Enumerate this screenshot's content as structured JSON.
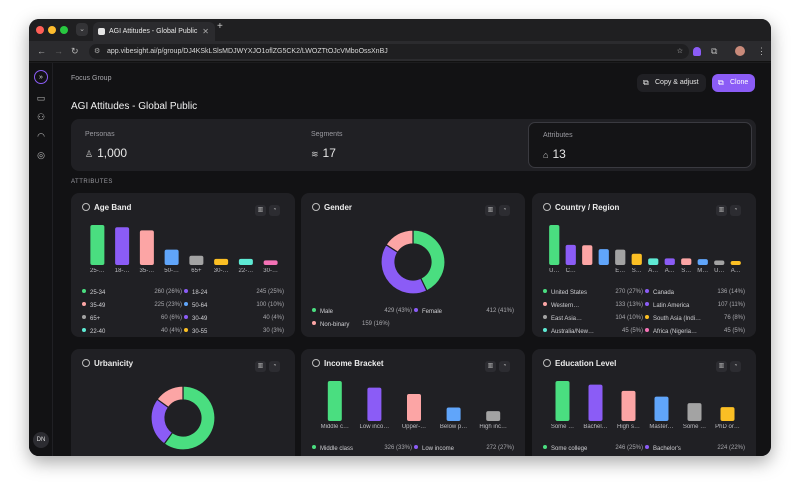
{
  "browser": {
    "tab_title": "AGI Attitudes - Global Public",
    "new_tab": "+",
    "url": "app.vibesight.ai/p/group/DJ4KSkLSlsMDJWYXJO1oflZG5CK2/LWOZTtOJcVMboOssXnBJ"
  },
  "rail": {
    "avatar": "DN"
  },
  "header": {
    "breadcrumb": "Focus Group",
    "title": "AGI Attitudes - Global Public",
    "copy_label": "Copy & adjust",
    "clone_label": "Clone"
  },
  "summary": {
    "personas_label": "Personas",
    "personas_value": "1,000",
    "segments_label": "Segments",
    "segments_value": "17",
    "attributes_label": "Attributes",
    "attributes_value": "13"
  },
  "section_label": "ATTRIBUTES",
  "colors": {
    "green": "#4ade80",
    "purple": "#8b5cf6",
    "pink": "#fca5a5",
    "blue": "#60a5fa",
    "gray": "#a3a3a3",
    "orange": "#fbbf24",
    "cyan": "#5eead4",
    "magenta": "#f472b6",
    "accent": "#8b5cf6"
  },
  "cards": [
    {
      "title": "Age Band",
      "type": "bar",
      "categories": [
        "25-…",
        "18-…",
        "35-…",
        "50-…",
        "65+",
        "30-…",
        "22-…",
        "30-…"
      ],
      "values": [
        260,
        245,
        225,
        100,
        60,
        40,
        40,
        30
      ],
      "colors": [
        "green",
        "purple",
        "pink",
        "blue",
        "gray",
        "orange",
        "cyan",
        "magenta"
      ],
      "legend": [
        {
          "label": "25-34",
          "count": "260 (26%)",
          "color": "green"
        },
        {
          "label": "18-24",
          "count": "245 (25%)",
          "color": "purple"
        },
        {
          "label": "35-49",
          "count": "225 (23%)",
          "color": "pink"
        },
        {
          "label": "50-64",
          "count": "100 (10%)",
          "color": "blue"
        },
        {
          "label": "65+",
          "count": "60 (6%)",
          "color": "gray"
        },
        {
          "label": "30-49",
          "count": "40 (4%)",
          "color": "purple"
        },
        {
          "label": "22-40",
          "count": "40 (4%)",
          "color": "cyan"
        },
        {
          "label": "30-55",
          "count": "30 (3%)",
          "color": "orange"
        }
      ]
    },
    {
      "title": "Gender",
      "type": "donut",
      "values": [
        429,
        412,
        159
      ],
      "colors": [
        "green",
        "purple",
        "pink"
      ],
      "legend": [
        {
          "label": "Male",
          "count": "429 (43%)",
          "color": "green"
        },
        {
          "label": "Female",
          "count": "412 (41%)",
          "color": "purple"
        },
        {
          "label": "Non-binary",
          "count": "159 (16%)",
          "color": "pink"
        }
      ]
    },
    {
      "title": "Country / Region",
      "type": "bar",
      "categories": [
        "U…",
        "C…",
        "",
        "",
        "E…",
        "S…",
        "A…",
        "A…",
        "S…",
        "M…",
        "U…",
        "A…"
      ],
      "values": [
        270,
        136,
        133,
        107,
        104,
        76,
        45,
        45,
        45,
        40,
        30,
        20
      ],
      "colors": [
        "green",
        "purple",
        "pink",
        "blue",
        "gray",
        "orange",
        "cyan",
        "purple",
        "pink",
        "blue",
        "gray",
        "orange"
      ],
      "legend": [
        {
          "label": "United States",
          "count": "270 (27%)",
          "color": "green"
        },
        {
          "label": "Canada",
          "count": "136 (14%)",
          "color": "purple"
        },
        {
          "label": "Western…",
          "count": "133 (13%)",
          "color": "pink"
        },
        {
          "label": "Latin America",
          "count": "107 (11%)",
          "color": "purple"
        },
        {
          "label": "East Asia…",
          "count": "104 (10%)",
          "color": "gray"
        },
        {
          "label": "South Asia (Indi…",
          "count": "76 (8%)",
          "color": "orange"
        },
        {
          "label": "Australia/New…",
          "count": "45 (5%)",
          "color": "cyan"
        },
        {
          "label": "Africa (Nigeria…",
          "count": "45 (5%)",
          "color": "magenta"
        }
      ]
    },
    {
      "title": "Urbanicity",
      "type": "donut",
      "values": [
        600,
        250,
        150
      ],
      "colors": [
        "green",
        "purple",
        "pink"
      ],
      "legend": []
    },
    {
      "title": "Income Bracket",
      "type": "bar",
      "categories": [
        "Middle c…",
        "Low inco…",
        "Upper-…",
        "Below p…",
        "High inc…"
      ],
      "values": [
        326,
        272,
        220,
        110,
        80
      ],
      "colors": [
        "green",
        "purple",
        "pink",
        "blue",
        "gray"
      ],
      "legend": [
        {
          "label": "Middle class",
          "count": "326 (33%)",
          "color": "green"
        },
        {
          "label": "Low income",
          "count": "272 (27%)",
          "color": "purple"
        }
      ]
    },
    {
      "title": "Education Level",
      "type": "bar",
      "categories": [
        "Some …",
        "Bachel…",
        "High s…",
        "Master…",
        "Some …",
        "PhD or…"
      ],
      "values": [
        246,
        224,
        185,
        150,
        110,
        85
      ],
      "colors": [
        "green",
        "purple",
        "pink",
        "blue",
        "gray",
        "orange"
      ],
      "legend": [
        {
          "label": "Some college",
          "count": "246 (25%)",
          "color": "green"
        },
        {
          "label": "Bachelor's",
          "count": "224 (22%)",
          "color": "purple"
        }
      ]
    }
  ]
}
